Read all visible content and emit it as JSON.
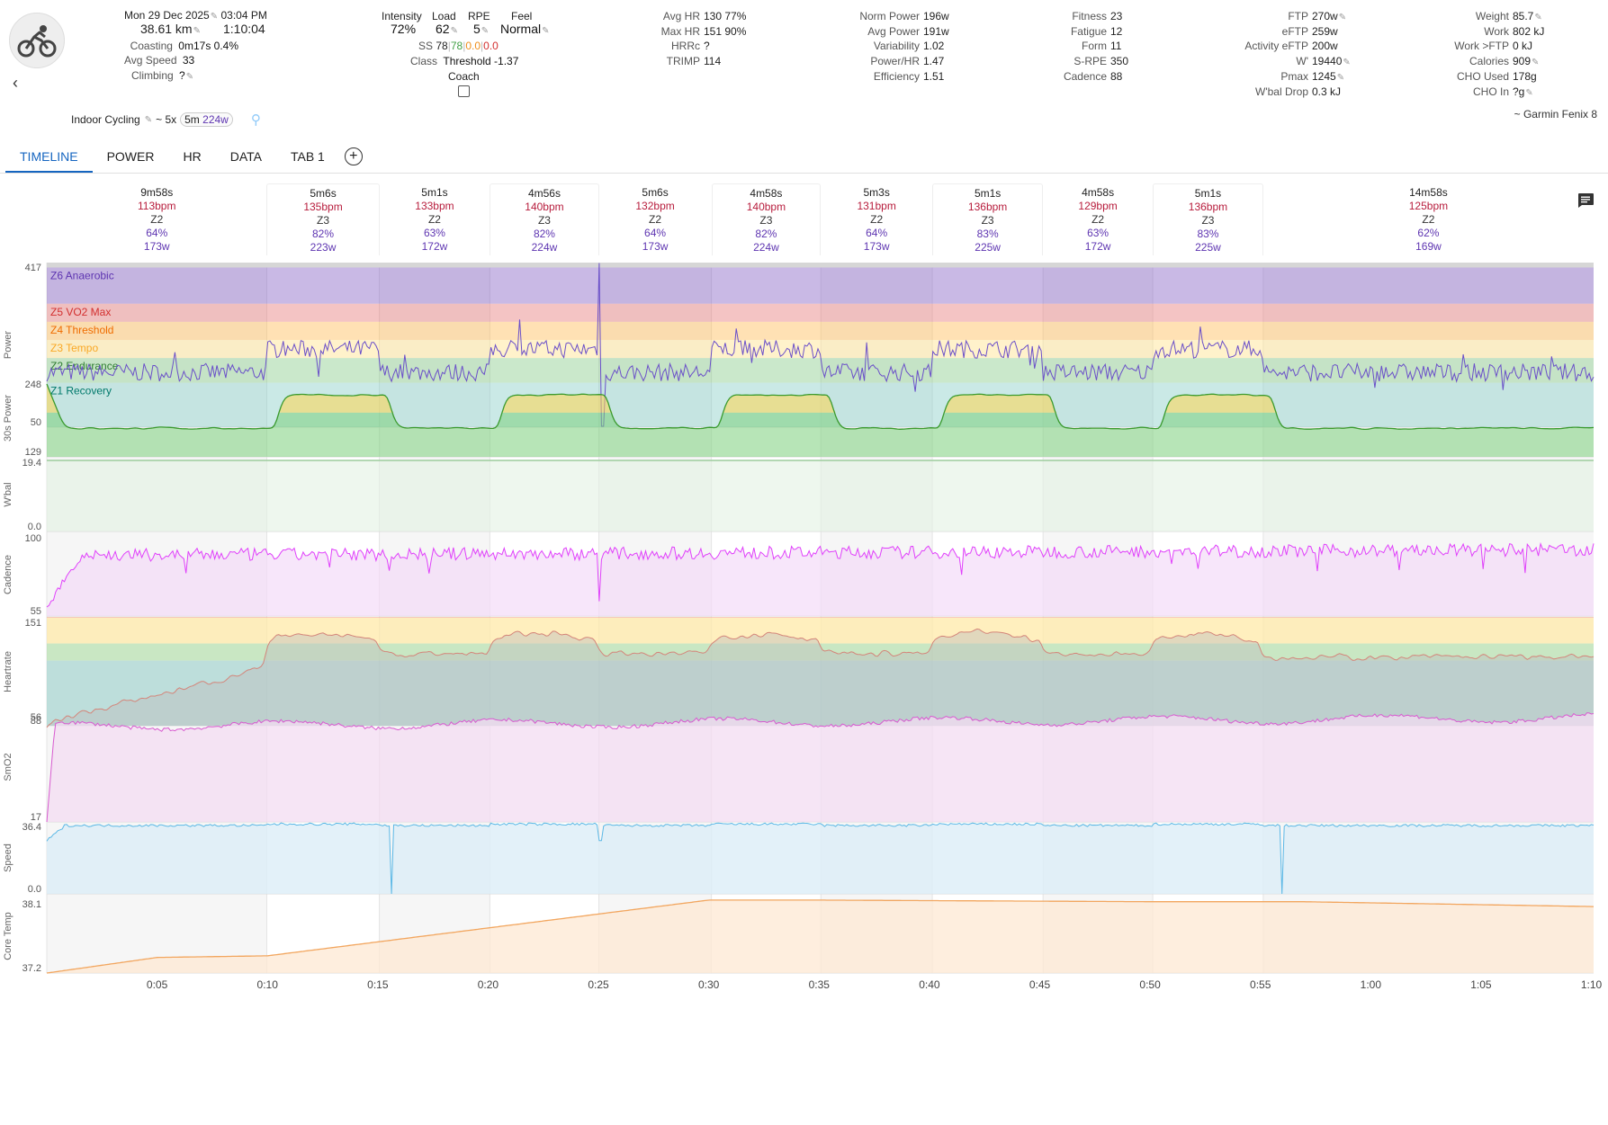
{
  "header": {
    "date": "Mon 29 Dec 2025",
    "time": "03:04 PM",
    "distance": "38.61 km",
    "duration": "1:10:04",
    "coasting": {
      "label": "Coasting",
      "value": "0m17s 0.4%"
    },
    "avg_speed": {
      "label": "Avg Speed",
      "value": "33"
    },
    "climbing": {
      "label": "Climbing",
      "value": "?"
    },
    "intensity": {
      "label": "Intensity",
      "value": "72%"
    },
    "load": {
      "label": "Load",
      "value": "62"
    },
    "rpe": {
      "label": "RPE",
      "value": "5"
    },
    "feel": {
      "label": "Feel",
      "value": "Normal"
    },
    "ss": {
      "label": "SS",
      "v1": "78",
      "v2": "78",
      "v3": "0.0",
      "v4": "0.0"
    },
    "class": {
      "label": "Class",
      "value": "Threshold -1.37"
    },
    "coach": {
      "label": "Coach"
    },
    "col_hr": [
      {
        "label": "Avg HR",
        "value": "130 77%"
      },
      {
        "label": "Max HR",
        "value": "151 90%"
      },
      {
        "label": "HRRc",
        "value": "?"
      },
      {
        "label": "TRIMP",
        "value": "114"
      }
    ],
    "col_power": [
      {
        "label": "Norm Power",
        "value": "196w"
      },
      {
        "label": "Avg Power",
        "value": "191w"
      },
      {
        "label": "Variability",
        "value": "1.02"
      },
      {
        "label": "Power/HR",
        "value": "1.47"
      },
      {
        "label": "Efficiency",
        "value": "1.51"
      }
    ],
    "col_fitness": [
      {
        "label": "Fitness",
        "value": "23"
      },
      {
        "label": "Fatigue",
        "value": "12"
      },
      {
        "label": "Form",
        "value": "11"
      },
      {
        "label": "S-RPE",
        "value": "350"
      },
      {
        "label": "Cadence",
        "value": "88"
      }
    ],
    "col_ftp": [
      {
        "label": "FTP",
        "value": "270w"
      },
      {
        "label": "eFTP",
        "value": "259w"
      },
      {
        "label": "Activity eFTP",
        "value": "200w"
      },
      {
        "label": "W'",
        "value": "19440"
      },
      {
        "label": "Pmax",
        "value": "1245"
      },
      {
        "label": "W'bal Drop",
        "value": "0.3 kJ"
      }
    ],
    "col_weight": [
      {
        "label": "Weight",
        "value": "85.7"
      },
      {
        "label": "Work",
        "value": "802 kJ"
      },
      {
        "label": "Work >FTP",
        "value": "0 kJ"
      },
      {
        "label": "Calories",
        "value": "909"
      },
      {
        "label": "CHO Used",
        "value": "178g"
      },
      {
        "label": "CHO In",
        "value": "?g"
      }
    ],
    "activity_type": "Indoor Cycling",
    "summary_prefix": "~ 5x",
    "summary_dur": "5m",
    "summary_power": "224w",
    "device": "~ Garmin Fenix 8"
  },
  "tabs": [
    "TIMELINE",
    "POWER",
    "HR",
    "DATA",
    "TAB 1"
  ],
  "intervals": [
    {
      "time": "9m58s",
      "hr": "113bpm",
      "zone": "Z2",
      "pct": "64%",
      "power": "173w",
      "start": 0,
      "end": 9.97
    },
    {
      "time": "5m6s",
      "hr": "135bpm",
      "zone": "Z3",
      "pct": "82%",
      "power": "223w",
      "start": 9.97,
      "end": 15.07
    },
    {
      "time": "5m1s",
      "hr": "133bpm",
      "zone": "Z2",
      "pct": "63%",
      "power": "172w",
      "start": 15.07,
      "end": 20.08
    },
    {
      "time": "4m56s",
      "hr": "140bpm",
      "zone": "Z3",
      "pct": "82%",
      "power": "224w",
      "start": 20.08,
      "end": 25.02
    },
    {
      "time": "5m6s",
      "hr": "132bpm",
      "zone": "Z2",
      "pct": "64%",
      "power": "173w",
      "start": 25.02,
      "end": 30.12
    },
    {
      "time": "4m58s",
      "hr": "140bpm",
      "zone": "Z3",
      "pct": "82%",
      "power": "224w",
      "start": 30.12,
      "end": 35.08
    },
    {
      "time": "5m3s",
      "hr": "131bpm",
      "zone": "Z2",
      "pct": "64%",
      "power": "173w",
      "start": 35.08,
      "end": 40.13
    },
    {
      "time": "5m1s",
      "hr": "136bpm",
      "zone": "Z3",
      "pct": "83%",
      "power": "225w",
      "start": 40.13,
      "end": 45.15
    },
    {
      "time": "4m58s",
      "hr": "129bpm",
      "zone": "Z2",
      "pct": "63%",
      "power": "172w",
      "start": 45.15,
      "end": 50.12
    },
    {
      "time": "5m1s",
      "hr": "136bpm",
      "zone": "Z3",
      "pct": "83%",
      "power": "225w",
      "start": 50.12,
      "end": 55.13
    },
    {
      "time": "14m58s",
      "hr": "125bpm",
      "zone": "Z2",
      "pct": "62%",
      "power": "169w",
      "start": 55.13,
      "end": 70.1
    }
  ],
  "power_zones": [
    {
      "name": "Z6 Anaerobic",
      "color": "#7e57c2",
      "text": "#5e35b1"
    },
    {
      "name": "Z5 VO2 Max",
      "color": "#e57373",
      "text": "#d32f2f"
    },
    {
      "name": "Z4 Threshold",
      "color": "#ffb74d",
      "text": "#ef6c00"
    },
    {
      "name": "Z3 Tempo",
      "color": "#ffe082",
      "text": "#f9a825"
    },
    {
      "name": "Z2 Endurance",
      "color": "#81c784",
      "text": "#2e7d32"
    },
    {
      "name": "Z1 Recovery",
      "color": "#80cbc4",
      "text": "#00796b"
    }
  ],
  "panels": [
    {
      "name": "Power",
      "max": "417",
      "min": "50",
      "color": "#6a4fc9"
    },
    {
      "name": "30s Power",
      "max": "248",
      "min": "129",
      "color": "#2e9d2e"
    },
    {
      "name": "W'bal",
      "max": "19.4",
      "min": "0.0",
      "color": "#9ccc9c"
    },
    {
      "name": "Cadence",
      "max": "100",
      "min": "55",
      "color": "#e040fb"
    },
    {
      "name": "Heartrate",
      "max": "151",
      "min": "88",
      "color": "#d4857a"
    },
    {
      "name": "SmO2",
      "max": "56",
      "min": "17",
      "color": "#d85ad0"
    },
    {
      "name": "Speed",
      "max": "36.4",
      "min": "0.0",
      "color": "#5bb8e6"
    },
    {
      "name": "Core Temp",
      "max": "38.1",
      "min": "37.2",
      "color": "#f2a65f"
    }
  ],
  "x_ticks": [
    "0:05",
    "0:10",
    "0:15",
    "0:20",
    "0:25",
    "0:30",
    "0:35",
    "0:40",
    "0:45",
    "0:50",
    "0:55",
    "1:00",
    "1:05",
    "1:10"
  ],
  "total_minutes": 70.1
}
